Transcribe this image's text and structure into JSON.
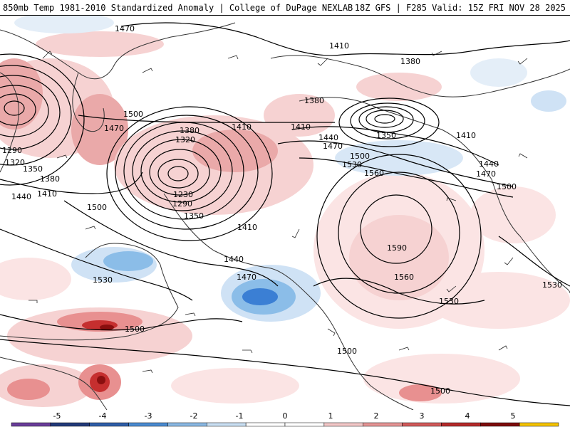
{
  "header": {
    "left_title": "850mb Temp 1981-2010 Standardized Anomaly | College of DuPage NEXLAB",
    "right_title": "18Z GFS | F285 Valid: 15Z FRI NOV 28 2025"
  },
  "map": {
    "contour_labels": [
      "1470",
      "1410",
      "1380",
      "1500",
      "1470",
      "1380",
      "1320",
      "1410",
      "1410",
      "1440",
      "1470",
      "1350",
      "1380",
      "1410",
      "1290",
      "1320",
      "1350",
      "1380",
      "1410",
      "1440",
      "1230",
      "1290",
      "1350",
      "1500",
      "1500",
      "1530",
      "1560",
      "1440",
      "1470",
      "1500",
      "1590",
      "1560",
      "1530",
      "1530",
      "1410",
      "1440",
      "1470",
      "1500",
      "1500",
      "1530",
      "1500"
    ],
    "anomaly_colors": {
      "neg_strong": "#3b7fd4",
      "neg_mid": "#8bbde8",
      "neg_light": "#cfe2f5",
      "pos_light": "#f6d2d2",
      "pos_mid": "#e89090",
      "pos_strong": "#c62f2f",
      "pos_extreme": "#8a0f0f"
    }
  },
  "legend": {
    "ticks": [
      "-5",
      "-4",
      "-3",
      "-2",
      "-1",
      "0",
      "1",
      "2",
      "3",
      "4",
      "5"
    ],
    "colors": [
      "#6a3d9a",
      "#233a7a",
      "#2f5ea8",
      "#4a8bd1",
      "#8ab8e3",
      "#c9dff2",
      "#ffffff",
      "#ffffff",
      "#f2c7c7",
      "#e59494",
      "#d25a5a",
      "#b52a2a",
      "#7d0c0c",
      "#f5c400"
    ]
  }
}
